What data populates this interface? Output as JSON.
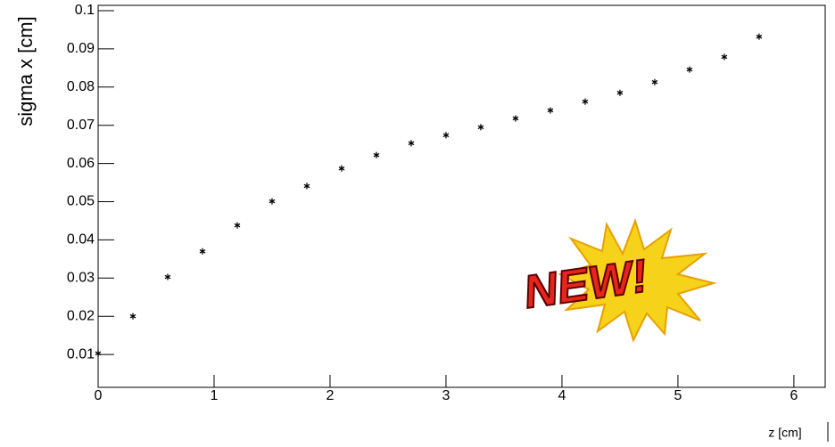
{
  "chart_data": {
    "type": "scatter",
    "x_label": "z [cm]",
    "y_label": "sigma x [cm]",
    "annotation": "NEW!",
    "x": [
      0,
      0.3,
      0.6,
      0.9,
      1.2,
      1.5,
      1.8,
      2.1,
      2.4,
      2.7,
      3.0,
      3.3,
      3.6,
      3.9,
      4.2,
      4.5,
      4.8,
      5.1,
      5.4,
      5.7
    ],
    "values": [
      0.0103,
      0.02,
      0.0303,
      0.037,
      0.0438,
      0.0501,
      0.0541,
      0.0587,
      0.0622,
      0.0653,
      0.0674,
      0.0695,
      0.0718,
      0.0739,
      0.0762,
      0.0785,
      0.0813,
      0.0846,
      0.0879,
      0.0932
    ],
    "color": "#000000",
    "xlim": [
      0,
      6.27
    ],
    "ylim": [
      0.0014,
      0.1014
    ],
    "xticks": [
      0,
      1,
      2,
      3,
      4,
      5,
      6
    ],
    "yticks": [
      0.01,
      0.02,
      0.03,
      0.04,
      0.05,
      0.06,
      0.07,
      0.08,
      0.09,
      0.1
    ],
    "grid": false
  }
}
